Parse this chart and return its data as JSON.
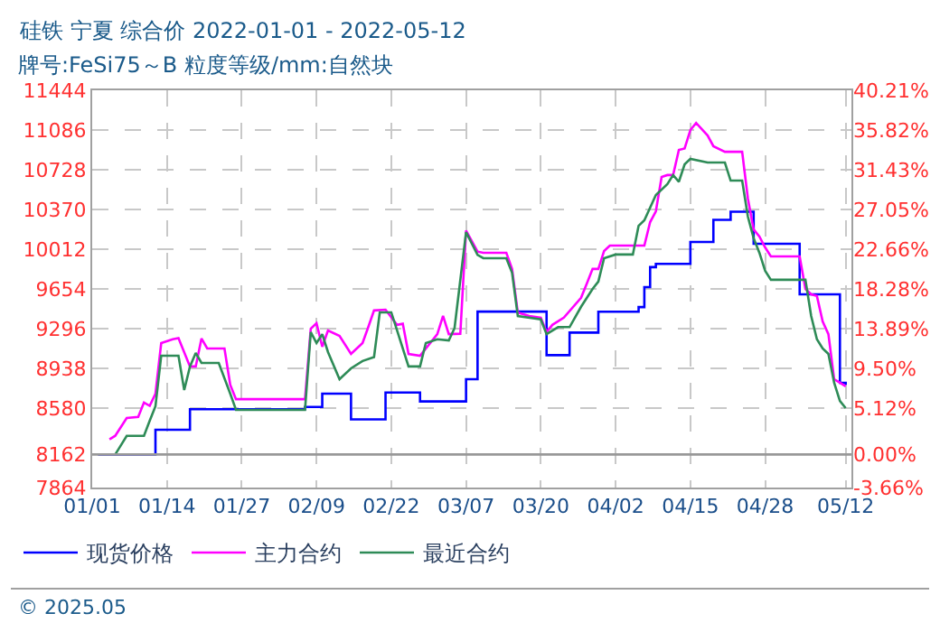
{
  "chart_data": {
    "type": "line",
    "title": "硅铁 宁夏 综合价 2022-01-01 - 2022-05-12",
    "subtitle": "牌号:FeSi75～B 粒度等级/mm:自然块",
    "annotations": [
      "© 2025.05"
    ],
    "xlim": [
      "2022-01-01",
      "2022-05-13"
    ],
    "xticks": [
      {
        "value": "2022-01-01",
        "label": "01/01"
      },
      {
        "value": "2022-01-14",
        "label": "01/14"
      },
      {
        "value": "2022-01-27",
        "label": "01/27"
      },
      {
        "value": "2022-02-09",
        "label": "02/09"
      },
      {
        "value": "2022-02-22",
        "label": "02/22"
      },
      {
        "value": "2022-03-07",
        "label": "03/07"
      },
      {
        "value": "2022-03-20",
        "label": "03/20"
      },
      {
        "value": "2022-04-02",
        "label": "04/02"
      },
      {
        "value": "2022-04-15",
        "label": "04/15"
      },
      {
        "value": "2022-04-28",
        "label": "04/28"
      },
      {
        "value": "2022-05-12",
        "label": "05/12"
      }
    ],
    "ylim": [
      7864,
      11444
    ],
    "yticks": [
      7864,
      8162,
      8580,
      8938,
      9296,
      9654,
      10012,
      10370,
      10728,
      11086,
      11444
    ],
    "y2lim": [
      -3.66,
      40.21
    ],
    "y2ticks": [
      {
        "value": -3.66,
        "label": "-3.66%"
      },
      {
        "value": 0,
        "label": "0.00%"
      },
      {
        "value": 5.12,
        "label": "5.12%"
      },
      {
        "value": 9.5,
        "label": "9.50%"
      },
      {
        "value": 13.89,
        "label": "13.89%"
      },
      {
        "value": 18.28,
        "label": "18.28%"
      },
      {
        "value": 22.66,
        "label": "22.66%"
      },
      {
        "value": 27.05,
        "label": "27.05%"
      },
      {
        "value": 31.43,
        "label": "31.43%"
      },
      {
        "value": 35.82,
        "label": "35.82%"
      },
      {
        "value": 40.21,
        "label": "40.21%"
      }
    ],
    "ref_lines": [
      {
        "axis": "y",
        "value": 8162,
        "color": "#999999"
      }
    ],
    "grid": true,
    "legend": "bottom",
    "series": [
      {
        "name": "现货价格",
        "color": "#0000ff",
        "type": "step",
        "x": [
          "2022-01-02",
          "2022-01-12",
          "2022-01-18",
          "2022-02-07",
          "2022-02-10",
          "2022-02-15",
          "2022-02-21",
          "2022-02-27",
          "2022-03-07",
          "2022-03-09",
          "2022-03-21",
          "2022-03-25",
          "2022-03-30",
          "2022-04-06",
          "2022-04-07",
          "2022-04-08",
          "2022-04-09",
          "2022-04-15",
          "2022-04-19",
          "2022-04-22",
          "2022-04-26",
          "2022-05-04",
          "2022-05-11",
          "2022-05-12"
        ],
        "values": [
          8162,
          8385,
          8570,
          8590,
          8710,
          8478,
          8720,
          8640,
          8840,
          9450,
          9057,
          9260,
          9448,
          9490,
          9670,
          9850,
          9880,
          10077,
          10277,
          10350,
          10061,
          9605,
          8808,
          8790
        ]
      },
      {
        "name": "主力合约",
        "color": "#ff00ff",
        "x": [
          "2022-01-04",
          "2022-01-05",
          "2022-01-07",
          "2022-01-09",
          "2022-01-10",
          "2022-01-11",
          "2022-01-12",
          "2022-01-13",
          "2022-01-15",
          "2022-01-16",
          "2022-01-18",
          "2022-01-19",
          "2022-01-20",
          "2022-01-21",
          "2022-01-24",
          "2022-01-25",
          "2022-01-26",
          "2022-02-07",
          "2022-02-08",
          "2022-02-09",
          "2022-02-10",
          "2022-02-11",
          "2022-02-13",
          "2022-02-15",
          "2022-02-17",
          "2022-02-18",
          "2022-02-19",
          "2022-02-21",
          "2022-02-23",
          "2022-02-24",
          "2022-02-25",
          "2022-02-27",
          "2022-03-02",
          "2022-03-03",
          "2022-03-04",
          "2022-03-06",
          "2022-03-07",
          "2022-03-09",
          "2022-03-10",
          "2022-03-14",
          "2022-03-15",
          "2022-03-16",
          "2022-03-18",
          "2022-03-20",
          "2022-03-21",
          "2022-03-22",
          "2022-03-24",
          "2022-03-27",
          "2022-03-28",
          "2022-03-29",
          "2022-03-30",
          "2022-03-31",
          "2022-04-01",
          "2022-04-07",
          "2022-04-08",
          "2022-04-09",
          "2022-04-10",
          "2022-04-11",
          "2022-04-12",
          "2022-04-13",
          "2022-04-14",
          "2022-04-15",
          "2022-04-16",
          "2022-04-18",
          "2022-04-19",
          "2022-04-21",
          "2022-04-24",
          "2022-04-25",
          "2022-04-26",
          "2022-04-27",
          "2022-04-28",
          "2022-04-29",
          "2022-05-04",
          "2022-05-05",
          "2022-05-06",
          "2022-05-07",
          "2022-05-08",
          "2022-05-09",
          "2022-05-10",
          "2022-05-11",
          "2022-05-12"
        ],
        "values": [
          8299,
          8330,
          8490,
          8500,
          8630,
          8600,
          8710,
          9166,
          9200,
          9210,
          8955,
          8955,
          9207,
          9117,
          9117,
          8790,
          8660,
          8660,
          9296,
          9345,
          9133,
          9280,
          9230,
          9068,
          9166,
          9310,
          9460,
          9467,
          9330,
          9340,
          9068,
          9052,
          9246,
          9410,
          9246,
          9250,
          10180,
          9990,
          9980,
          9980,
          9834,
          9440,
          9410,
          9395,
          9265,
          9330,
          9395,
          9574,
          9703,
          9834,
          9834,
          9996,
          10044,
          10044,
          10256,
          10353,
          10663,
          10680,
          10680,
          10907,
          10920,
          11086,
          11150,
          11037,
          10940,
          10890,
          10890,
          10468,
          10190,
          10126,
          10028,
          9947,
          9947,
          9654,
          9605,
          9590,
          9360,
          9246,
          8840,
          8808,
          8776
        ]
      },
      {
        "name": "最近合约",
        "color": "#2e8b57",
        "x": [
          "2022-01-05",
          "2022-01-06",
          "2022-01-07",
          "2022-01-10",
          "2022-01-11",
          "2022-01-12",
          "2022-01-13",
          "2022-01-16",
          "2022-01-17",
          "2022-01-18",
          "2022-01-19",
          "2022-01-20",
          "2022-01-23",
          "2022-01-25",
          "2022-01-26",
          "2022-02-07",
          "2022-02-08",
          "2022-02-09",
          "2022-02-10",
          "2022-02-11",
          "2022-02-13",
          "2022-02-15",
          "2022-02-17",
          "2022-02-19",
          "2022-02-20",
          "2022-02-22",
          "2022-02-23",
          "2022-02-25",
          "2022-02-27",
          "2022-02-28",
          "2022-03-02",
          "2022-03-04",
          "2022-03-05",
          "2022-03-07",
          "2022-03-09",
          "2022-03-10",
          "2022-03-14",
          "2022-03-15",
          "2022-03-16",
          "2022-03-20",
          "2022-03-21",
          "2022-03-23",
          "2022-03-25",
          "2022-03-27",
          "2022-03-29",
          "2022-03-30",
          "2022-03-31",
          "2022-04-02",
          "2022-04-05",
          "2022-04-06",
          "2022-04-07",
          "2022-04-09",
          "2022-04-11",
          "2022-04-12",
          "2022-04-13",
          "2022-04-14",
          "2022-04-15",
          "2022-04-18",
          "2022-04-21",
          "2022-04-22",
          "2022-04-24",
          "2022-04-25",
          "2022-04-26",
          "2022-04-27",
          "2022-04-28",
          "2022-04-29",
          "2022-05-05",
          "2022-05-06",
          "2022-05-07",
          "2022-05-08",
          "2022-05-09",
          "2022-05-10",
          "2022-05-11",
          "2022-05-12"
        ],
        "values": [
          8162,
          8245,
          8330,
          8330,
          8466,
          8597,
          9052,
          9052,
          8743,
          8955,
          9077,
          8987,
          8987,
          8710,
          8564,
          8564,
          9264,
          9166,
          9246,
          9085,
          8840,
          8938,
          9004,
          9040,
          9443,
          9443,
          9280,
          8955,
          8955,
          9166,
          9200,
          9190,
          9300,
          10166,
          9960,
          9931,
          9931,
          9800,
          9410,
          9380,
          9246,
          9310,
          9310,
          9493,
          9654,
          9720,
          9931,
          9964,
          9964,
          10223,
          10272,
          10500,
          10598,
          10680,
          10620,
          10777,
          10826,
          10793,
          10793,
          10630,
          10630,
          10305,
          10110,
          9980,
          9817,
          9736,
          9736,
          9410,
          9200,
          9117,
          9068,
          8808,
          8645,
          8580
        ]
      }
    ]
  }
}
